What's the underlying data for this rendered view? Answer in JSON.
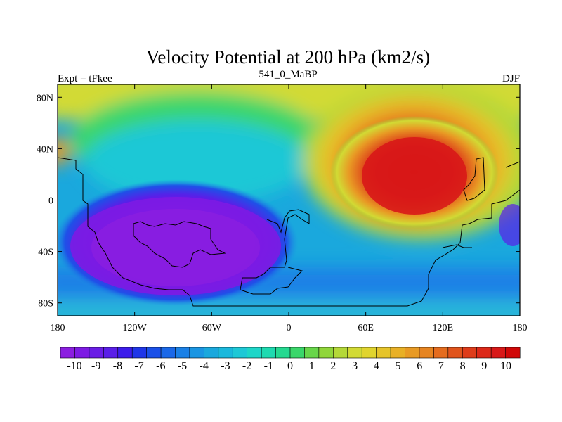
{
  "chart_data": {
    "type": "heatmap",
    "title": "Velocity Potential at 200 hPa (km2/s)",
    "left_string": "Expt = tFkee",
    "center_string": "541_0_MaBP",
    "right_string": "DJF",
    "xlim": [
      -180,
      180
    ],
    "ylim": [
      -90,
      90
    ],
    "x_ticks": [
      {
        "value": -180,
        "label": "180"
      },
      {
        "value": -120,
        "label": "120W"
      },
      {
        "value": -60,
        "label": "60W"
      },
      {
        "value": 0,
        "label": "0"
      },
      {
        "value": 60,
        "label": "60E"
      },
      {
        "value": 120,
        "label": "120E"
      },
      {
        "value": 180,
        "label": "180"
      }
    ],
    "y_ticks": [
      {
        "value": 80,
        "label": "80N"
      },
      {
        "value": 40,
        "label": "40N"
      },
      {
        "value": 0,
        "label": "0"
      },
      {
        "value": -40,
        "label": "40S"
      },
      {
        "value": -80,
        "label": "80S"
      }
    ],
    "colorbar": {
      "labels": [
        "-10",
        "-9",
        "-8",
        "-7",
        "-6",
        "-5",
        "-4",
        "-3",
        "-2",
        "-1",
        "0",
        "1",
        "2",
        "3",
        "4",
        "5",
        "6",
        "7",
        "8",
        "9",
        "10"
      ],
      "colors": [
        "#8b1ee0",
        "#7d1be3",
        "#6a1de6",
        "#5a1ee8",
        "#3c1ceb",
        "#1f36e8",
        "#1a50e8",
        "#1a68e8",
        "#1a80e6",
        "#1a95e2",
        "#1aa8dd",
        "#1ab8dc",
        "#1ec8d6",
        "#1ed6c8",
        "#1edab0",
        "#24d990",
        "#3ad66a",
        "#68d64a",
        "#90d63a",
        "#b4d838",
        "#d2da34",
        "#e0d42e",
        "#e6c42a",
        "#e8b026",
        "#e89a24",
        "#e68420",
        "#e46c1e",
        "#e0541c",
        "#de3c1a",
        "#dc2818",
        "#d81818",
        "#d00808"
      ]
    },
    "centers": [
      {
        "lon": -100,
        "lat": -20,
        "value": -10
      },
      {
        "lon": 95,
        "lat": 18,
        "value": 10
      }
    ]
  }
}
